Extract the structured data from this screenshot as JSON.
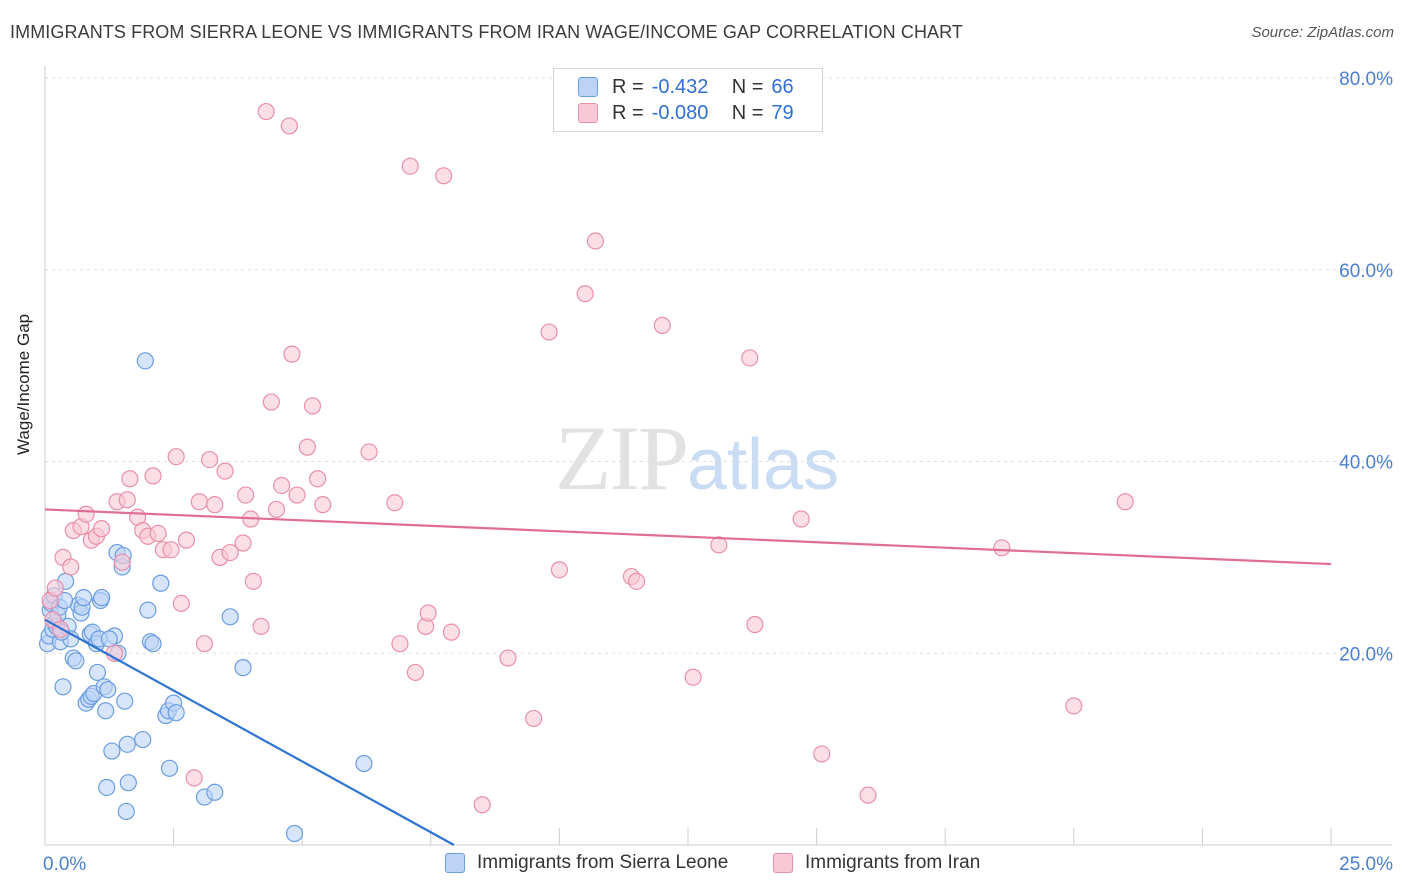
{
  "header": {
    "title": "IMMIGRANTS FROM SIERRA LEONE VS IMMIGRANTS FROM IRAN WAGE/INCOME GAP CORRELATION CHART",
    "source": "Source: ZipAtlas.com"
  },
  "watermark": {
    "zip": "ZIP",
    "atlas": "atlas"
  },
  "legend_top": {
    "rows": [
      {
        "r_label": "R =",
        "r_value": "-0.432",
        "n_label": "N =",
        "n_value": "66"
      },
      {
        "r_label": "R =",
        "r_value": "-0.080",
        "n_label": "N =",
        "n_value": "79"
      }
    ]
  },
  "legend_bottom": {
    "items": [
      "Immigrants from Sierra Leone",
      "Immigrants from Iran"
    ]
  },
  "colors": {
    "blue_fill": "#bcd3f6",
    "blue_stroke": "#6b9de0",
    "blue_line": "#2f74d0",
    "pink_fill": "#f9c8d6",
    "pink_stroke": "#e890aa",
    "pink_line": "#e06d93",
    "tick_label": "#4a7fd0",
    "grid": "#dddddd"
  },
  "chart_data": {
    "type": "scatter",
    "title": "IMMIGRANTS FROM SIERRA LEONE VS IMMIGRANTS FROM IRAN WAGE/INCOME GAP CORRELATION CHART",
    "xlabel": "",
    "ylabel": "Wage/Income Gap",
    "xlim": [
      0,
      25
    ],
    "ylim": [
      0,
      80
    ],
    "x_tick_labels": [
      {
        "value": 0,
        "label": "0.0%"
      },
      {
        "value": 25,
        "label": "25.0%"
      }
    ],
    "y_tick_labels": [
      {
        "value": 80,
        "label": "80.0%"
      },
      {
        "value": 60,
        "label": "60.0%"
      },
      {
        "value": 40,
        "label": "40.0%"
      },
      {
        "value": 20,
        "label": "20.0%"
      }
    ],
    "grid": true,
    "series": [
      {
        "name": "Immigrants from Sierra Leone",
        "color": "blue",
        "trend": {
          "x": [
            0,
            7.95
          ],
          "y": [
            23.5,
            0
          ]
        },
        "points": [
          [
            0.05,
            21.0
          ],
          [
            0.08,
            21.8
          ],
          [
            0.1,
            24.5
          ],
          [
            0.12,
            25.2
          ],
          [
            0.15,
            22.5
          ],
          [
            0.18,
            26.0
          ],
          [
            0.2,
            23.2
          ],
          [
            0.22,
            22.8
          ],
          [
            0.25,
            24.0
          ],
          [
            0.3,
            21.2
          ],
          [
            0.35,
            16.5
          ],
          [
            0.4,
            27.5
          ],
          [
            0.45,
            22.8
          ],
          [
            0.5,
            21.5
          ],
          [
            0.55,
            19.5
          ],
          [
            0.6,
            19.2
          ],
          [
            0.65,
            25.0
          ],
          [
            0.7,
            24.2
          ],
          [
            0.72,
            24.8
          ],
          [
            0.75,
            25.8
          ],
          [
            0.8,
            14.8
          ],
          [
            0.85,
            15.2
          ],
          [
            0.88,
            22.0
          ],
          [
            0.9,
            15.5
          ],
          [
            0.92,
            22.2
          ],
          [
            0.95,
            15.8
          ],
          [
            1.0,
            21.0
          ],
          [
            1.02,
            18.0
          ],
          [
            1.05,
            21.5
          ],
          [
            1.08,
            25.5
          ],
          [
            1.1,
            25.8
          ],
          [
            1.15,
            16.5
          ],
          [
            1.18,
            14.0
          ],
          [
            1.2,
            6.0
          ],
          [
            1.22,
            16.2
          ],
          [
            1.3,
            9.8
          ],
          [
            1.35,
            21.8
          ],
          [
            1.4,
            30.5
          ],
          [
            1.42,
            20.0
          ],
          [
            1.5,
            29.0
          ],
          [
            1.52,
            30.2
          ],
          [
            1.55,
            15.0
          ],
          [
            1.58,
            3.5
          ],
          [
            1.6,
            10.5
          ],
          [
            1.62,
            6.5
          ],
          [
            1.9,
            11.0
          ],
          [
            1.95,
            50.5
          ],
          [
            2.0,
            24.5
          ],
          [
            2.05,
            21.2
          ],
          [
            2.1,
            21.0
          ],
          [
            2.25,
            27.3
          ],
          [
            2.35,
            13.5
          ],
          [
            2.4,
            14.0
          ],
          [
            2.42,
            8.0
          ],
          [
            2.5,
            14.8
          ],
          [
            2.55,
            13.8
          ],
          [
            3.1,
            5.0
          ],
          [
            3.3,
            5.5
          ],
          [
            3.6,
            23.8
          ],
          [
            3.85,
            18.5
          ],
          [
            4.85,
            1.2
          ],
          [
            6.2,
            8.5
          ],
          [
            0.28,
            24.8
          ],
          [
            0.32,
            22.2
          ],
          [
            0.38,
            25.5
          ],
          [
            1.25,
            21.5
          ]
        ]
      },
      {
        "name": "Immigrants from Iran",
        "color": "pink",
        "trend": {
          "x": [
            0,
            25
          ],
          "y": [
            35.0,
            29.3
          ]
        },
        "points": [
          [
            0.1,
            25.5
          ],
          [
            0.15,
            23.5
          ],
          [
            0.2,
            26.8
          ],
          [
            0.3,
            22.5
          ],
          [
            0.35,
            30.0
          ],
          [
            0.5,
            29.0
          ],
          [
            0.55,
            32.8
          ],
          [
            0.7,
            33.2
          ],
          [
            0.8,
            34.5
          ],
          [
            0.9,
            31.8
          ],
          [
            1.0,
            32.2
          ],
          [
            1.1,
            33.0
          ],
          [
            1.35,
            20.0
          ],
          [
            1.4,
            35.8
          ],
          [
            1.5,
            29.5
          ],
          [
            1.6,
            36.0
          ],
          [
            1.65,
            38.2
          ],
          [
            1.8,
            34.2
          ],
          [
            1.9,
            32.8
          ],
          [
            2.0,
            32.2
          ],
          [
            2.1,
            38.5
          ],
          [
            2.2,
            32.5
          ],
          [
            2.3,
            30.8
          ],
          [
            2.45,
            30.8
          ],
          [
            2.55,
            40.5
          ],
          [
            2.65,
            25.2
          ],
          [
            2.75,
            31.8
          ],
          [
            2.9,
            7.0
          ],
          [
            3.0,
            35.8
          ],
          [
            3.1,
            21.0
          ],
          [
            3.2,
            40.2
          ],
          [
            3.3,
            35.5
          ],
          [
            3.4,
            30.0
          ],
          [
            3.5,
            39.0
          ],
          [
            3.6,
            30.5
          ],
          [
            3.85,
            31.5
          ],
          [
            3.9,
            36.5
          ],
          [
            4.0,
            34.0
          ],
          [
            4.05,
            27.5
          ],
          [
            4.2,
            22.8
          ],
          [
            4.3,
            76.5
          ],
          [
            4.4,
            46.2
          ],
          [
            4.5,
            35.0
          ],
          [
            4.6,
            37.5
          ],
          [
            4.75,
            75.0
          ],
          [
            4.8,
            51.2
          ],
          [
            4.9,
            36.5
          ],
          [
            5.1,
            41.5
          ],
          [
            5.2,
            45.8
          ],
          [
            5.3,
            38.2
          ],
          [
            5.4,
            35.5
          ],
          [
            6.3,
            41.0
          ],
          [
            6.8,
            35.7
          ],
          [
            6.9,
            21.0
          ],
          [
            7.1,
            70.8
          ],
          [
            7.2,
            18.0
          ],
          [
            7.4,
            22.8
          ],
          [
            7.45,
            24.2
          ],
          [
            7.75,
            69.8
          ],
          [
            7.9,
            22.2
          ],
          [
            8.5,
            4.2
          ],
          [
            9.0,
            19.5
          ],
          [
            9.5,
            13.2
          ],
          [
            9.8,
            53.5
          ],
          [
            10.0,
            28.7
          ],
          [
            10.5,
            57.5
          ],
          [
            10.7,
            63.0
          ],
          [
            11.4,
            28.0
          ],
          [
            11.5,
            27.5
          ],
          [
            12.0,
            54.2
          ],
          [
            12.6,
            17.5
          ],
          [
            13.1,
            31.3
          ],
          [
            13.7,
            50.8
          ],
          [
            13.8,
            23.0
          ],
          [
            14.7,
            34.0
          ],
          [
            15.1,
            9.5
          ],
          [
            16.0,
            5.2
          ],
          [
            18.6,
            31.0
          ],
          [
            20.0,
            14.5
          ],
          [
            21.0,
            35.8
          ]
        ]
      }
    ]
  }
}
